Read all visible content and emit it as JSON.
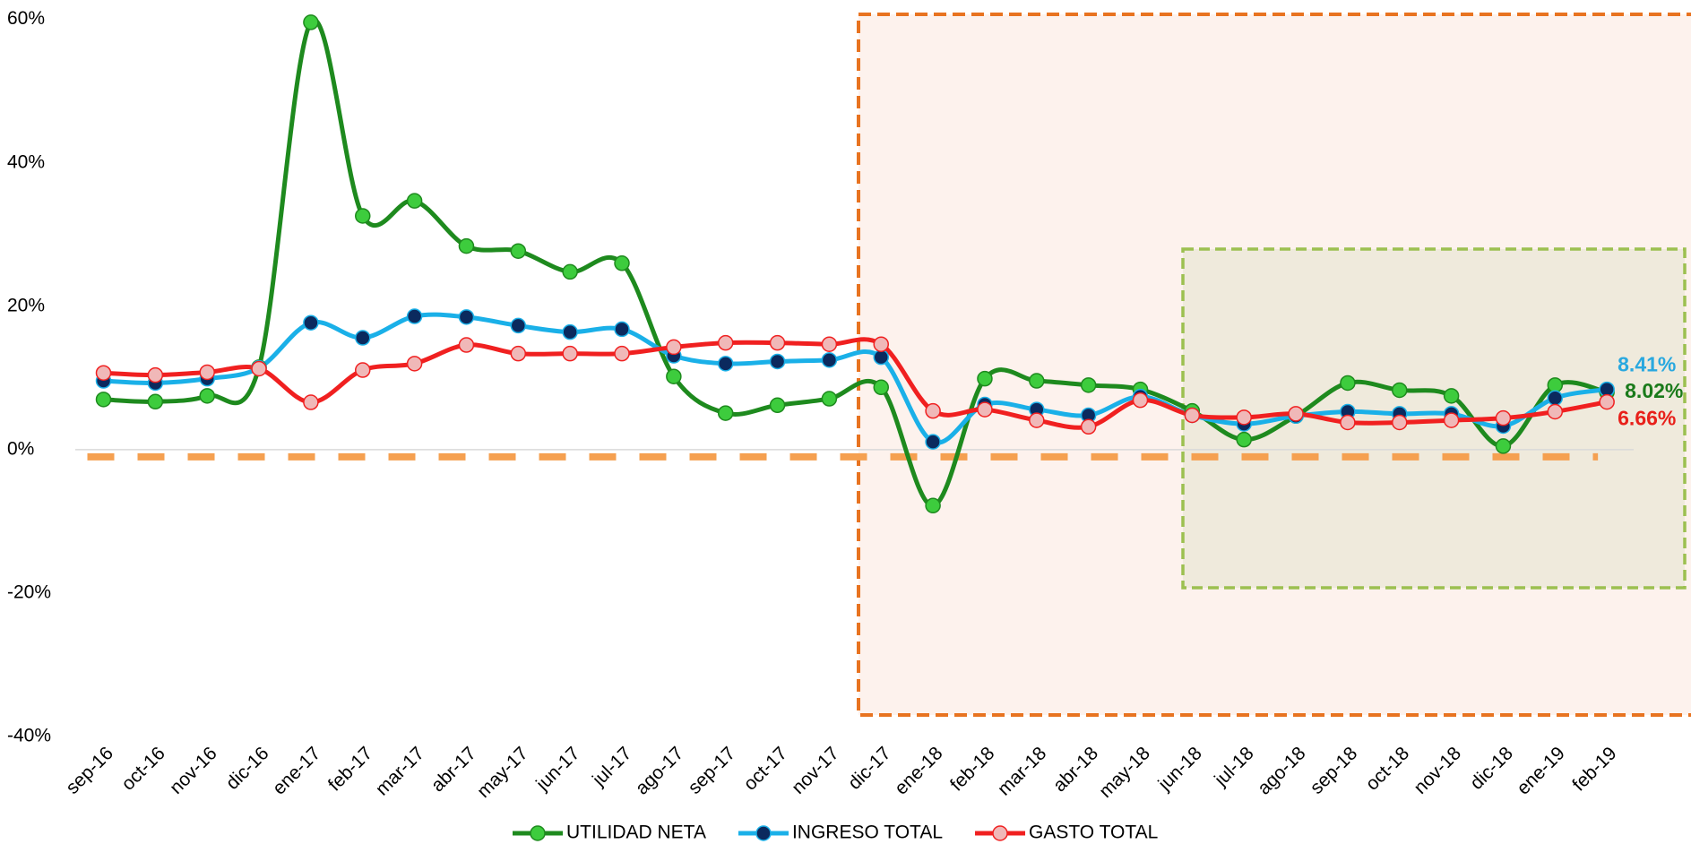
{
  "chart_data": {
    "type": "line",
    "categories": [
      "sep-16",
      "oct-16",
      "nov-16",
      "dic-16",
      "ene-17",
      "feb-17",
      "mar-17",
      "abr-17",
      "may-17",
      "jun-17",
      "jul-17",
      "ago-17",
      "sep-17",
      "oct-17",
      "nov-17",
      "dic-17",
      "ene-18",
      "feb-18",
      "mar-18",
      "abr-18",
      "may-18",
      "jun-18",
      "jul-18",
      "ago-18",
      "sep-18",
      "oct-18",
      "nov-18",
      "dic-18",
      "ene-19",
      "feb-19"
    ],
    "series": [
      {
        "name": "UTILIDAD NETA",
        "color": "#1e8a1e",
        "marker_color": "#3dcc3d",
        "label_color": "#1a7a1a",
        "values": [
          7.0,
          6.7,
          7.5,
          11.5,
          59.6,
          32.6,
          34.7,
          28.4,
          27.7,
          24.8,
          26.0,
          10.2,
          5.1,
          6.2,
          7.1,
          8.7,
          -7.8,
          9.9,
          9.6,
          9.0,
          8.4,
          5.4,
          1.4,
          4.7,
          9.3,
          8.3,
          7.5,
          0.5,
          9.0,
          8.02
        ],
        "value_labels": [
          null,
          null,
          null,
          null,
          null,
          null,
          null,
          null,
          null,
          null,
          null,
          null,
          null,
          null,
          null,
          null,
          null,
          null,
          null,
          null,
          null,
          null,
          null,
          null,
          null,
          null,
          null,
          null,
          null,
          "8.02%"
        ]
      },
      {
        "name": "INGRESO TOTAL",
        "color": "#1ab0e8",
        "marker_color": "#0b2a5e",
        "label_color": "#29a8df",
        "values": [
          9.6,
          9.3,
          9.9,
          11.4,
          17.7,
          15.6,
          18.6,
          18.5,
          17.3,
          16.4,
          16.8,
          13.1,
          12.0,
          12.3,
          12.5,
          12.9,
          1.1,
          6.3,
          5.6,
          4.8,
          7.4,
          4.8,
          3.6,
          4.7,
          5.3,
          5.0,
          5.0,
          3.3,
          7.2,
          8.41
        ],
        "value_labels": [
          null,
          null,
          null,
          null,
          null,
          null,
          null,
          null,
          null,
          null,
          null,
          null,
          null,
          null,
          null,
          null,
          null,
          null,
          null,
          null,
          null,
          null,
          null,
          null,
          null,
          null,
          null,
          null,
          null,
          "8.41%"
        ]
      },
      {
        "name": "GASTO TOTAL",
        "color": "#f02020",
        "marker_color": "#f0b8b8",
        "label_color": "#e8201a",
        "values": [
          10.7,
          10.4,
          10.8,
          11.3,
          6.6,
          11.1,
          12.0,
          14.6,
          13.4,
          13.4,
          13.4,
          14.3,
          14.9,
          14.9,
          14.7,
          14.7,
          5.4,
          5.6,
          4.1,
          3.2,
          6.9,
          4.8,
          4.5,
          5.0,
          3.8,
          3.8,
          4.1,
          4.4,
          5.3,
          6.66
        ],
        "value_labels": [
          null,
          null,
          null,
          null,
          null,
          null,
          null,
          null,
          null,
          null,
          null,
          null,
          null,
          null,
          null,
          null,
          null,
          null,
          null,
          null,
          null,
          null,
          null,
          null,
          null,
          null,
          null,
          null,
          null,
          "6.66%"
        ]
      }
    ],
    "reference_line": {
      "value": -1,
      "color": "#f5a050"
    },
    "ylim": [
      -40,
      60
    ],
    "yticks": [
      {
        "value": -40,
        "label": "-40%"
      },
      {
        "value": -20,
        "label": "-20%"
      },
      {
        "value": 0,
        "label": "0%"
      },
      {
        "value": 20,
        "label": "20%"
      },
      {
        "value": 40,
        "label": "40%"
      },
      {
        "value": 60,
        "label": "60%"
      }
    ],
    "legend": "bottom"
  }
}
